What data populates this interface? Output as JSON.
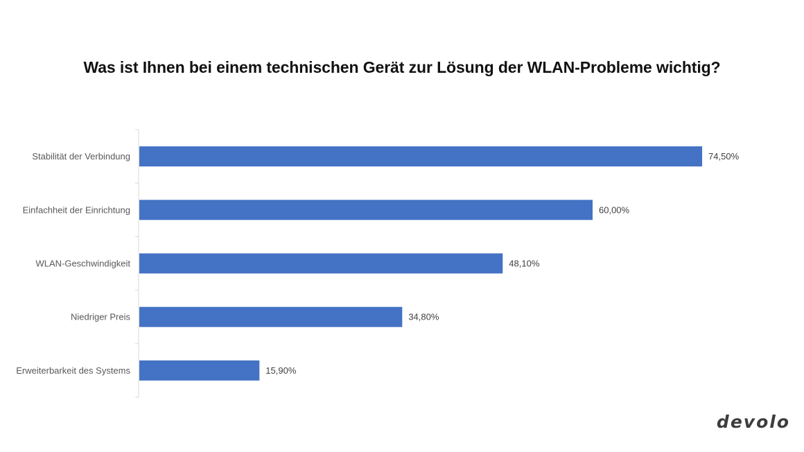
{
  "chart_data": {
    "type": "bar",
    "orientation": "horizontal",
    "title": "Was ist Ihnen bei einem technischen Gerät zur Lösung der WLAN-Probleme wichtig?",
    "xlabel": "",
    "ylabel": "",
    "categories": [
      "Stabilität der Verbindung",
      "Einfachheit der Einrichtung",
      "WLAN-Geschwindigkeit",
      "Niedriger Preis",
      "Erweiterbarkeit des Systems"
    ],
    "values": [
      74.5,
      60.0,
      48.1,
      34.8,
      15.9
    ],
    "value_labels": [
      "74,50%",
      "60,00%",
      "48,10%",
      "34,80%",
      "15,90%"
    ],
    "unit": "%",
    "xlim": [
      0,
      80
    ],
    "grid": false,
    "legend": "none",
    "bar_color": "#4472c4"
  },
  "brand": {
    "logo_text": "devolo",
    "logo_color": "#3d3d3d"
  }
}
